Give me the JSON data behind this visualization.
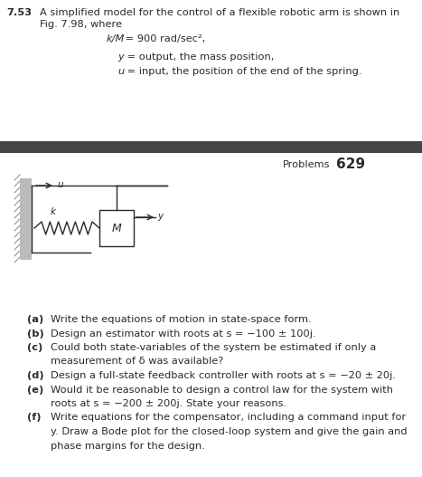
{
  "problem_number": "7.53",
  "intro_line1": "A simplified model for the control of a flexible robotic arm is shown in",
  "intro_line2": "Fig. 7.98, where",
  "eq1_italic": "k/M",
  "eq1_rest": " = 900 rad/sec²,",
  "eq2_italic": "y",
  "eq2_rest": " = output, the mass position,",
  "eq3_italic": "u",
  "eq3_rest": " = input, the position of the end of the spring.",
  "header_right": "Problems",
  "page_number": "629",
  "parts": [
    [
      "(a)",
      "Write the equations of motion in state-space form."
    ],
    [
      "(b)",
      "Design an estimator with roots at s = −100 ± 100j."
    ],
    [
      "(c)",
      "Could both state-variables of the system be estimated if only a"
    ],
    [
      "",
      "measurement of ẟ was available?"
    ],
    [
      "(d)",
      "Design a full-state feedback controller with roots at s = −20 ± 20j."
    ],
    [
      "(e)",
      "Would it be reasonable to design a control law for the system with"
    ],
    [
      "",
      "roots at s = −200 ± 200j. State your reasons."
    ],
    [
      "(f)",
      "Write equations for the compensator, including a command input for"
    ],
    [
      "",
      "y. Draw a Bode plot for the closed-loop system and give the gain and"
    ],
    [
      "",
      "phase margins for the design."
    ]
  ],
  "bg_color": "#ffffff",
  "text_color": "#2a2a2a",
  "divider_color": "#444444",
  "wall_color": "#bbbbbb"
}
